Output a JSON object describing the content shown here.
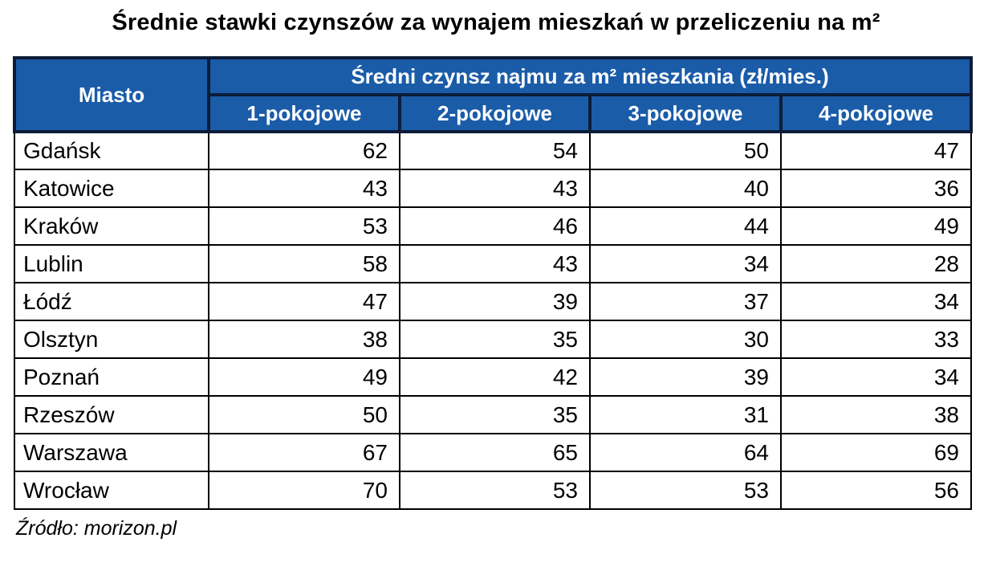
{
  "page": {
    "title": "Średnie stawki czynszów za wynajem mieszkań w przeliczeniu na m²",
    "source": "Źródło: morizon.pl"
  },
  "colors": {
    "header_bg": "#1A5CA8",
    "header_border": "#0C1C38",
    "header_text": "#FFFFFF",
    "body_border": "#000000",
    "body_text": "#000000"
  },
  "chart_data": {
    "type": "table",
    "title": "Średnie stawki czynszów za wynajem mieszkań w przeliczeniu na m²",
    "corner_header": "Miasto",
    "group_header": "Średni czynsz najmu za m² mieszkania (zł/mies.)",
    "columns": [
      "1-pokojowe",
      "2-pokojowe",
      "3-pokojowe",
      "4-pokojowe"
    ],
    "rows": [
      {
        "city": "Gdańsk",
        "values": [
          62,
          54,
          50,
          47
        ]
      },
      {
        "city": "Katowice",
        "values": [
          43,
          43,
          40,
          36
        ]
      },
      {
        "city": "Kraków",
        "values": [
          53,
          46,
          44,
          49
        ]
      },
      {
        "city": "Lublin",
        "values": [
          58,
          43,
          34,
          28
        ]
      },
      {
        "city": "Łódź",
        "values": [
          47,
          39,
          37,
          34
        ]
      },
      {
        "city": "Olsztyn",
        "values": [
          38,
          35,
          30,
          33
        ]
      },
      {
        "city": "Poznań",
        "values": [
          49,
          42,
          39,
          34
        ]
      },
      {
        "city": "Rzeszów",
        "values": [
          50,
          35,
          31,
          38
        ]
      },
      {
        "city": "Warszawa",
        "values": [
          67,
          65,
          64,
          69
        ]
      },
      {
        "city": "Wrocław",
        "values": [
          70,
          53,
          53,
          56
        ]
      }
    ],
    "source": "Źródło: morizon.pl",
    "units": "zł/mies. za m²"
  }
}
